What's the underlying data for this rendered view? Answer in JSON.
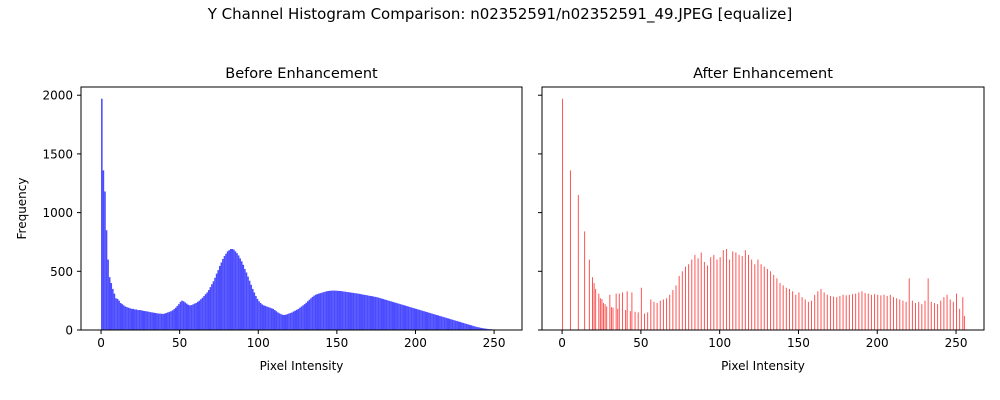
{
  "figure": {
    "suptitle": "Y Channel Histogram Comparison: n02352591/n02352591_49.JPEG [equalize]"
  },
  "chart_data": [
    {
      "type": "bar",
      "title": "Before Enhancement",
      "xlabel": "Pixel Intensity",
      "ylabel": "Frequency",
      "xlim": [
        -12.75,
        267.75
      ],
      "ylim": [
        0,
        2070
      ],
      "xticks": [
        0,
        50,
        100,
        150,
        200,
        250
      ],
      "yticks": [
        0,
        500,
        1000,
        1500,
        2000
      ],
      "color": "#0000ff",
      "opacity": 0.7,
      "bins": 256,
      "x_start": 0,
      "values": [
        1970,
        1360,
        1180,
        850,
        600,
        450,
        400,
        350,
        310,
        270,
        265,
        250,
        230,
        220,
        210,
        200,
        195,
        190,
        185,
        180,
        180,
        175,
        175,
        170,
        170,
        168,
        165,
        162,
        160,
        158,
        155,
        152,
        150,
        148,
        145,
        143,
        140,
        140,
        138,
        137,
        140,
        145,
        150,
        155,
        160,
        168,
        178,
        190,
        205,
        220,
        240,
        250,
        245,
        235,
        225,
        215,
        210,
        212,
        218,
        225,
        230,
        240,
        250,
        262,
        275,
        290,
        305,
        320,
        340,
        365,
        390,
        415,
        445,
        480,
        510,
        545,
        575,
        605,
        630,
        650,
        670,
        680,
        690,
        690,
        685,
        670,
        655,
        635,
        610,
        585,
        555,
        520,
        490,
        455,
        420,
        385,
        350,
        320,
        290,
        265,
        245,
        230,
        218,
        210,
        205,
        200,
        195,
        190,
        185,
        180,
        170,
        160,
        150,
        142,
        135,
        130,
        128,
        130,
        135,
        140,
        145,
        150,
        158,
        165,
        172,
        180,
        190,
        200,
        210,
        220,
        232,
        245,
        258,
        270,
        282,
        292,
        300,
        306,
        310,
        314,
        318,
        322,
        326,
        330,
        332,
        334,
        335,
        336,
        336,
        335,
        334,
        333,
        332,
        330,
        328,
        326,
        324,
        322,
        320,
        318,
        316,
        314,
        312,
        310,
        308,
        305,
        302,
        300,
        298,
        295,
        292,
        290,
        288,
        285,
        282,
        280,
        276,
        272,
        268,
        264,
        260,
        256,
        252,
        248,
        244,
        240,
        236,
        232,
        228,
        224,
        220,
        216,
        212,
        208,
        204,
        200,
        196,
        192,
        188,
        184,
        180,
        176,
        172,
        168,
        164,
        160,
        156,
        152,
        148,
        144,
        140,
        136,
        132,
        128,
        124,
        120,
        116,
        112,
        108,
        104,
        100,
        96,
        92,
        88,
        84,
        80,
        76,
        72,
        68,
        64,
        60,
        56,
        52,
        48,
        44,
        40,
        36,
        32,
        28,
        25,
        22,
        19,
        16,
        14,
        12,
        10,
        8,
        7,
        6,
        5,
        4,
        4,
        3,
        3,
        2,
        2,
        2,
        1,
        1,
        1,
        1,
        1,
        1,
        1,
        1
      ]
    },
    {
      "type": "bar",
      "title": "After Enhancement",
      "xlabel": "Pixel Intensity",
      "xlim": [
        -12.75,
        267.75
      ],
      "ylim": [
        0,
        2070
      ],
      "xticks": [
        0,
        50,
        100,
        150,
        200,
        250
      ],
      "yticks": [
        0,
        500,
        1000,
        1500,
        2000
      ],
      "color": "#ff0000",
      "opacity": 0.7,
      "bars": [
        [
          0,
          1970
        ],
        [
          5,
          1360
        ],
        [
          10,
          1150
        ],
        [
          14,
          840
        ],
        [
          17,
          600
        ],
        [
          19,
          450
        ],
        [
          20,
          400
        ],
        [
          21,
          350
        ],
        [
          23,
          310
        ],
        [
          24,
          270
        ],
        [
          25,
          265
        ],
        [
          26,
          230
        ],
        [
          27,
          220
        ],
        [
          28,
          200
        ],
        [
          30,
          300
        ],
        [
          31,
          195
        ],
        [
          32,
          190
        ],
        [
          34,
          310
        ],
        [
          35,
          180
        ],
        [
          36,
          310
        ],
        [
          38,
          320
        ],
        [
          40,
          170
        ],
        [
          41,
          330
        ],
        [
          43,
          160
        ],
        [
          44,
          320
        ],
        [
          46,
          155
        ],
        [
          48,
          150
        ],
        [
          50,
          360
        ],
        [
          52,
          140
        ],
        [
          54,
          150
        ],
        [
          56,
          260
        ],
        [
          58,
          240
        ],
        [
          60,
          230
        ],
        [
          62,
          250
        ],
        [
          64,
          260
        ],
        [
          66,
          270
        ],
        [
          68,
          300
        ],
        [
          70,
          340
        ],
        [
          72,
          380
        ],
        [
          74,
          460
        ],
        [
          76,
          500
        ],
        [
          78,
          540
        ],
        [
          80,
          560
        ],
        [
          82,
          600
        ],
        [
          84,
          640
        ],
        [
          86,
          610
        ],
        [
          88,
          660
        ],
        [
          90,
          580
        ],
        [
          92,
          550
        ],
        [
          94,
          620
        ],
        [
          96,
          640
        ],
        [
          98,
          600
        ],
        [
          100,
          620
        ],
        [
          102,
          680
        ],
        [
          104,
          690
        ],
        [
          106,
          600
        ],
        [
          108,
          670
        ],
        [
          110,
          660
        ],
        [
          112,
          640
        ],
        [
          114,
          630
        ],
        [
          116,
          680
        ],
        [
          118,
          640
        ],
        [
          120,
          600
        ],
        [
          122,
          560
        ],
        [
          124,
          600
        ],
        [
          126,
          560
        ],
        [
          128,
          540
        ],
        [
          130,
          520
        ],
        [
          132,
          500
        ],
        [
          134,
          470
        ],
        [
          136,
          440
        ],
        [
          138,
          400
        ],
        [
          140,
          380
        ],
        [
          142,
          360
        ],
        [
          144,
          350
        ],
        [
          146,
          330
        ],
        [
          148,
          300
        ],
        [
          150,
          320
        ],
        [
          152,
          280
        ],
        [
          154,
          260
        ],
        [
          156,
          240
        ],
        [
          158,
          250
        ],
        [
          160,
          300
        ],
        [
          162,
          330
        ],
        [
          164,
          350
        ],
        [
          166,
          320
        ],
        [
          168,
          300
        ],
        [
          170,
          290
        ],
        [
          172,
          285
        ],
        [
          174,
          280
        ],
        [
          176,
          290
        ],
        [
          178,
          300
        ],
        [
          180,
          295
        ],
        [
          182,
          300
        ],
        [
          184,
          305
        ],
        [
          186,
          310
        ],
        [
          188,
          320
        ],
        [
          190,
          330
        ],
        [
          192,
          315
        ],
        [
          194,
          310
        ],
        [
          196,
          300
        ],
        [
          198,
          305
        ],
        [
          200,
          300
        ],
        [
          202,
          295
        ],
        [
          204,
          300
        ],
        [
          206,
          290
        ],
        [
          208,
          300
        ],
        [
          210,
          280
        ],
        [
          212,
          270
        ],
        [
          214,
          260
        ],
        [
          216,
          250
        ],
        [
          218,
          240
        ],
        [
          220,
          440
        ],
        [
          222,
          250
        ],
        [
          224,
          230
        ],
        [
          226,
          240
        ],
        [
          228,
          220
        ],
        [
          230,
          250
        ],
        [
          232,
          440
        ],
        [
          234,
          240
        ],
        [
          236,
          230
        ],
        [
          238,
          220
        ],
        [
          240,
          250
        ],
        [
          242,
          280
        ],
        [
          244,
          300
        ],
        [
          246,
          260
        ],
        [
          248,
          240
        ],
        [
          250,
          310
        ],
        [
          252,
          180
        ],
        [
          254,
          280
        ],
        [
          255,
          120
        ]
      ]
    }
  ]
}
